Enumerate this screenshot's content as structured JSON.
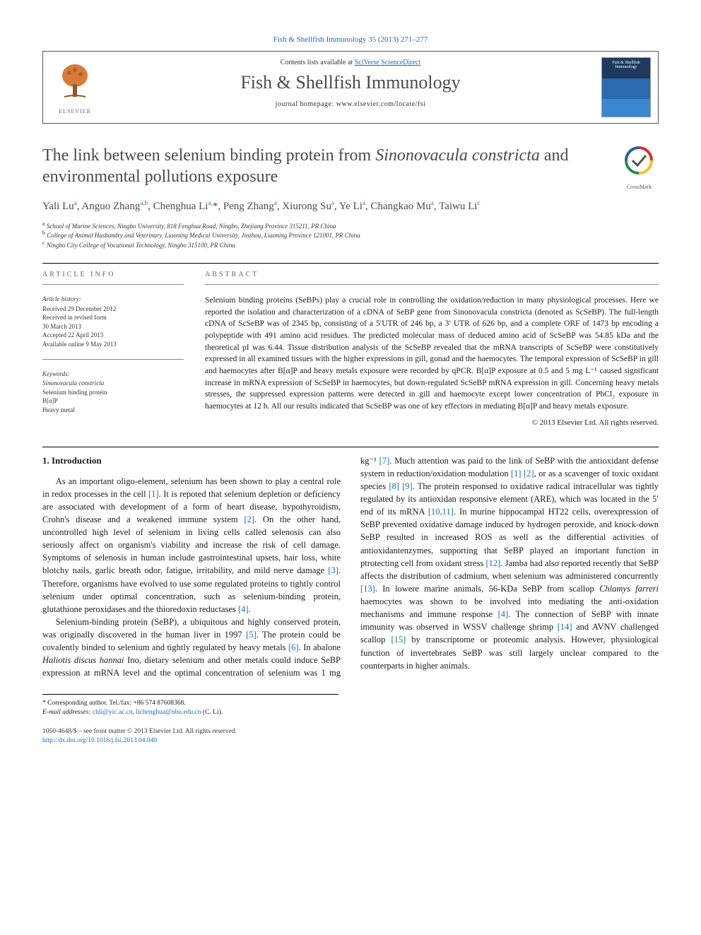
{
  "top_link": "Fish & Shellfish Immunology 35 (2013) 271–277",
  "header": {
    "contents_prefix": "Contents lists available at ",
    "contents_link": "SciVerse ScienceDirect",
    "journal_name": "Fish & Shellfish Immunology",
    "homepage_prefix": "journal homepage: ",
    "homepage_url": "www.elsevier.com/locate/fsi",
    "elsevier_label": "ELSEVIER",
    "cover_text": "Fish & Shellfish Immunology"
  },
  "crossmark_label": "CrossMark",
  "title_html": "The link between selenium binding protein from <em>Sinonovacula constricta</em> and environmental pollutions exposure",
  "authors_html": "Yali Lu<sup>a</sup>, Anguo Zhang<sup>a,b</sup>, Chenghua Li<sup>a,</sup>*, Peng Zhang<sup>a</sup>, Xiurong Su<sup>a</sup>, Ye Li<sup>a</sup>, Changkao Mu<sup>a</sup>, Taiwu Li<sup>c</sup>",
  "affiliations": [
    "a School of Marine Sciences, Ningbo University, 818 Fenghua Road, Ningbo, Zhejiang Province 315211, PR China",
    "b College of Animal Husbandry and Veterinary, Liaoning Medical University, Jinzhou, Liaoning Province 121001, PR China",
    "c Ningbo City College of Vocational Technology, Ningbo 315100, PR China"
  ],
  "info": {
    "label": "ARTICLE INFO",
    "history_hdr": "Article history:",
    "history": [
      "Received 29 December 2012",
      "Received in revised form",
      "30 March 2013",
      "Accepted 22 April 2013",
      "Available online 9 May 2013"
    ],
    "kw_hdr": "Keywords:",
    "keywords": [
      "Sinonovacula constricta",
      "Selenium binding protein",
      "B[α]P",
      "Heavy metal"
    ]
  },
  "abstract": {
    "label": "ABSTRACT",
    "text": "Selenium binding proteins (SeBPs) play a crucial role in controlling the oxidation/reduction in many physiological processes. Here we reported the isolation and characterization of a cDNA of SeBP gene from Sinonovacula constricta (denoted as ScSeBP). The full-length cDNA of ScSeBP was of 2345 bp, consisting of a 5′UTR of 246 bp, a 3′ UTR of 626 bp, and a complete ORF of 1473 bp encoding a polypeptide with 491 amino acid residues. The predicted molecular mass of deduced amino acid of ScSeBP was 54.85 kDa and the theoretical pI was 6.44. Tissue distribution analysis of the ScSeBP revealed that the mRNA transcripts of ScSeBP were constitutively expressed in all examined tissues with the higher expressions in gill, gonad and the haemocytes. The temporal expression of ScSeBP in gill and haemocytes after B[α]P and heavy metals exposure were recorded by qPCR. B[α]P exposure at 0.5 and 5 mg L⁻¹ caused significant increase in mRNA expression of ScSeBP in haemocytes, but down-regulated ScSeBP mRNA expression in gill. Concerning heavy metals stresses, the suppressed expression patterns were detected in gill and haemocyte except lower concentration of PbCl₂ exposure in haemocytes at 12 h. All our results indicated that ScSeBP was one of key effectors in mediating B[α]P and heavy metals exposure.",
    "copyright": "© 2013 Elsevier Ltd. All rights reserved."
  },
  "body": {
    "h1": "1. Introduction",
    "p1": "As an important oligo-element, selenium has been shown to play a central role in redox processes in the cell <a href=\"#\">[1]</a>. It is repoted that selenium depletion or deficiency are associated with development of a form of heart disease, hypothyroidism, Crohn's disease and a weakened immune system <a href=\"#\">[2]</a>. On the other hand, uncontrolled high level of selenium in living cells called selenosis can also seriously affect on organism's viability and increase the risk of cell damage. Symptoms of selenosis in human include gastrointestinal upsets, hair loss, white blotchy nails, garlic breath odor, fatigue, irritability, and mild nerve damage <a href=\"#\">[3]</a>. Therefore, organisms have evolved to use some regulated proteins to tightly control selenium under optimal concentration, such as selenium-binding protein, glutathione peroxidases and the thioredoxin reductases <a href=\"#\">[4]</a>.",
    "p2": "Selenium-binding protein (SeBP), a ubiquitous and highly conserved protein, was originally discovered in the human liver in 1997 <a href=\"#\">[5]</a>. The protein could be covalently binded to selenium and tightly regulated by heavy metals <a href=\"#\">[6]</a>. In abalone <em>Haliotis discus hannai</em> Ino, dietary selenium and other metals could induce SeBP expression at mRNA level and the optimal concentration of selenium was 1 mg kg⁻¹ <a href=\"#\">[7]</a>. Much attention was paid to the link of SeBP with the antioxidant defense system in reduction/oxidation modulation <a href=\"#\">[1] [2]</a>, or as a scavenger of toxic oxidant species <a href=\"#\">[8] [9]</a>. The protein responsed to oxidative radical intracellular was tightly regulated by its antioxidan responsive element (ARE), which was located in the 5′ end of its mRNA <a href=\"#\">[10,11]</a>. In murine hippocampal HT22 cells, overexpression of SeBP prevented oxidative damage induced by hydrogen peroxide, and knock-down SeBP resulted in increased ROS as well as the differential activities of antioxidantenzymes, supporting that SeBP played an important function in ptrotecting cell from oxidant stress <a href=\"#\">[12]</a>. Jamba had also reported recently that SeBP affects the distribution of cadmium, when selenium was administered concurrently <a href=\"#\">[13]</a>. In lowere marine animals, 56-KDa SeBP from scallop <em>Chlamys farreri</em> haemocytes was shown to be involved into mediating the anti-oxidation mechanisms and immune response <a href=\"#\">[4]</a>. The connection of SeBP with innate immunity was observed in WSSV challenge shrimp <a href=\"#\">[14]</a> and AVNV challenged scallop <a href=\"#\">[15]</a> by transcriptome or proteomic analysis. However, physiological function of invertebrates SeBP was still largely unclear compared to the counterparts in higher animals."
  },
  "footnotes": {
    "corr": "* Corresponding author. Tel./fax: +86 574 87608368.",
    "email_label": "E-mail addresses:",
    "email1": "chli@yic.ac.cn",
    "email2": "lichenghua@nbu.edu.cn",
    "email_suffix": " (C. Li)."
  },
  "footer": {
    "issn": "1050-4648/$ – see front matter © 2013 Elsevier Ltd. All rights reserved.",
    "doi_url": "http://dx.doi.org/10.1016/j.fsi.2013.04.040"
  },
  "colors": {
    "link": "#1a6bb5",
    "text": "#1a1a1a",
    "heading": "#4a4a4a"
  }
}
